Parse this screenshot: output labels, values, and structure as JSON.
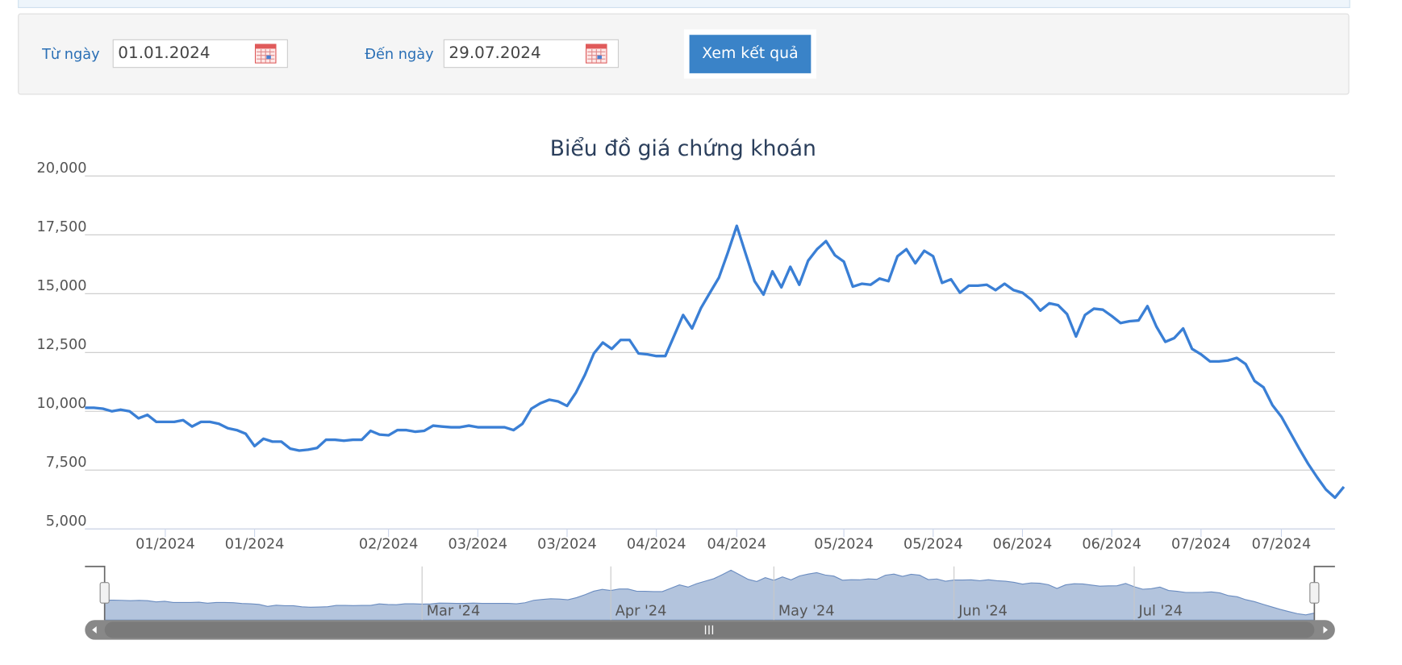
{
  "form": {
    "from_label": "Từ ngày",
    "from_value": "01.01.2024",
    "to_label": "Đến ngày",
    "to_value": "29.07.2024",
    "button": "Xem kết quả"
  },
  "chart_data": {
    "type": "line",
    "title": "Biểu đồ giá chứng khoán",
    "color": "#3a7fd5",
    "grid": true,
    "ylim": [
      5000,
      20000
    ],
    "yticks": [
      {
        "value": 5000,
        "label": "5,000"
      },
      {
        "value": 7500,
        "label": "7,500"
      },
      {
        "value": 10000,
        "label": "10,000"
      },
      {
        "value": 12500,
        "label": "12,500"
      },
      {
        "value": 15000,
        "label": "15,000"
      },
      {
        "value": 17500,
        "label": "17,500"
      },
      {
        "value": 20000,
        "label": "20,000"
      }
    ],
    "xlim": [
      0,
      140
    ],
    "xticks": [
      {
        "value": 9,
        "label": "01/2024"
      },
      {
        "value": 19,
        "label": "01/2024"
      },
      {
        "value": 34,
        "label": "02/2024"
      },
      {
        "value": 44,
        "label": "03/2024"
      },
      {
        "value": 54,
        "label": "03/2024"
      },
      {
        "value": 64,
        "label": "04/2024"
      },
      {
        "value": 73,
        "label": "04/2024"
      },
      {
        "value": 85,
        "label": "05/2024"
      },
      {
        "value": 95,
        "label": "05/2024"
      },
      {
        "value": 105,
        "label": "06/2024"
      },
      {
        "value": 115,
        "label": "06/2024"
      },
      {
        "value": 125,
        "label": "07/2024"
      },
      {
        "value": 134,
        "label": "07/2024"
      }
    ],
    "values": [
      10150,
      10150,
      10110,
      10000,
      10070,
      10000,
      9700,
      9850,
      9550,
      9550,
      9550,
      9620,
      9350,
      9550,
      9550,
      9470,
      9280,
      9200,
      9050,
      8520,
      8830,
      8710,
      8710,
      8410,
      8330,
      8370,
      8440,
      8790,
      8790,
      8750,
      8790,
      8790,
      9170,
      9010,
      8980,
      9200,
      9200,
      9130,
      9170,
      9390,
      9350,
      9320,
      9320,
      9390,
      9320,
      9320,
      9320,
      9320,
      9200,
      9470,
      10110,
      10340,
      10490,
      10420,
      10230,
      10800,
      11550,
      12460,
      12920,
      12650,
      13030,
      13030,
      12460,
      12420,
      12350,
      12350,
      13220,
      14090,
      13520,
      14390,
      15040,
      15680,
      16740,
      17880,
      16700,
      15530,
      14960,
      15950,
      15270,
      16140,
      15380,
      16400,
      16890,
      17230,
      16630,
      16360,
      15300,
      15420,
      15380,
      15640,
      15530,
      16590,
      16890,
      16290,
      16820,
      16590,
      15460,
      15610,
      15040,
      15340,
      15340,
      15380,
      15150,
      15420,
      15150,
      15040,
      14740,
      14280,
      14590,
      14510,
      14130,
      13180,
      14090,
      14360,
      14320,
      14050,
      13750,
      13830,
      13860,
      14470,
      13600,
      12950,
      13110,
      13520,
      12650,
      12420,
      12120,
      12120,
      12160,
      12270,
      12010,
      11290,
      11020,
      10260,
      9770,
      9090,
      8410,
      7770,
      7200,
      6670,
      6330,
      6790
    ],
    "navigator": {
      "ticks": [
        {
          "value": 37,
          "label": "Mar '24"
        },
        {
          "value": 59,
          "label": "Apr '24"
        },
        {
          "value": 78,
          "label": "May '24"
        },
        {
          "value": 99,
          "label": "Jun '24"
        },
        {
          "value": 120,
          "label": "Jul '24"
        }
      ]
    }
  }
}
